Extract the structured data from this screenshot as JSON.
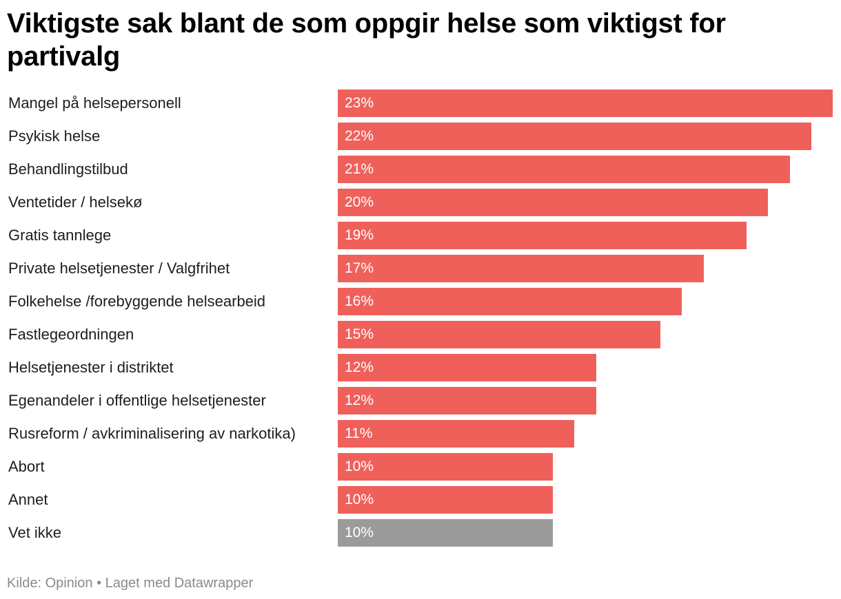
{
  "title": "Viktigste sak blant de som oppgir helse som viktigst for partivalg",
  "footer": {
    "source": "Kilde: Opinion",
    "separator": "•",
    "credit": "Laget med Datawrapper"
  },
  "colors": {
    "bar": "#f0605a",
    "bar_muted": "#9b9b9b",
    "value_text": "#ffffff"
  },
  "chart_data": {
    "type": "bar",
    "orientation": "horizontal",
    "title": "Viktigste sak blant de som oppgir helse som viktigst for partivalg",
    "xlabel": "",
    "ylabel": "",
    "xlim": [
      0,
      23
    ],
    "grid": false,
    "value_suffix": "%",
    "categories": [
      "Mangel på helsepersonell",
      "Psykisk helse",
      "Behandlingstilbud",
      "Ventetider / helsekø",
      "Gratis tannlege",
      "Private helsetjenester / Valgfrihet",
      "Folkehelse /forebyggende helsearbeid",
      "Fastlegeordningen",
      "Helsetjenester i distriktet",
      "Egenandeler i offentlige helsetjenester",
      "Rusreform / avkriminalisering av narkotika)",
      "Abort",
      "Annet",
      "Vet ikke"
    ],
    "values": [
      23,
      22,
      21,
      20,
      19,
      17,
      16,
      15,
      12,
      12,
      11,
      10,
      10,
      10
    ],
    "bar_lengths": [
      23,
      22,
      21,
      20,
      19,
      17,
      16,
      15,
      12,
      12,
      11,
      10,
      10,
      10
    ],
    "value_labels": [
      "23%",
      "22%",
      "21%",
      "20%",
      "19%",
      "17%",
      "16%",
      "15%",
      "12%",
      "12%",
      "11%",
      "10%",
      "10%",
      "10%"
    ],
    "muted": [
      false,
      false,
      false,
      false,
      false,
      false,
      false,
      false,
      false,
      false,
      false,
      false,
      false,
      true
    ]
  }
}
